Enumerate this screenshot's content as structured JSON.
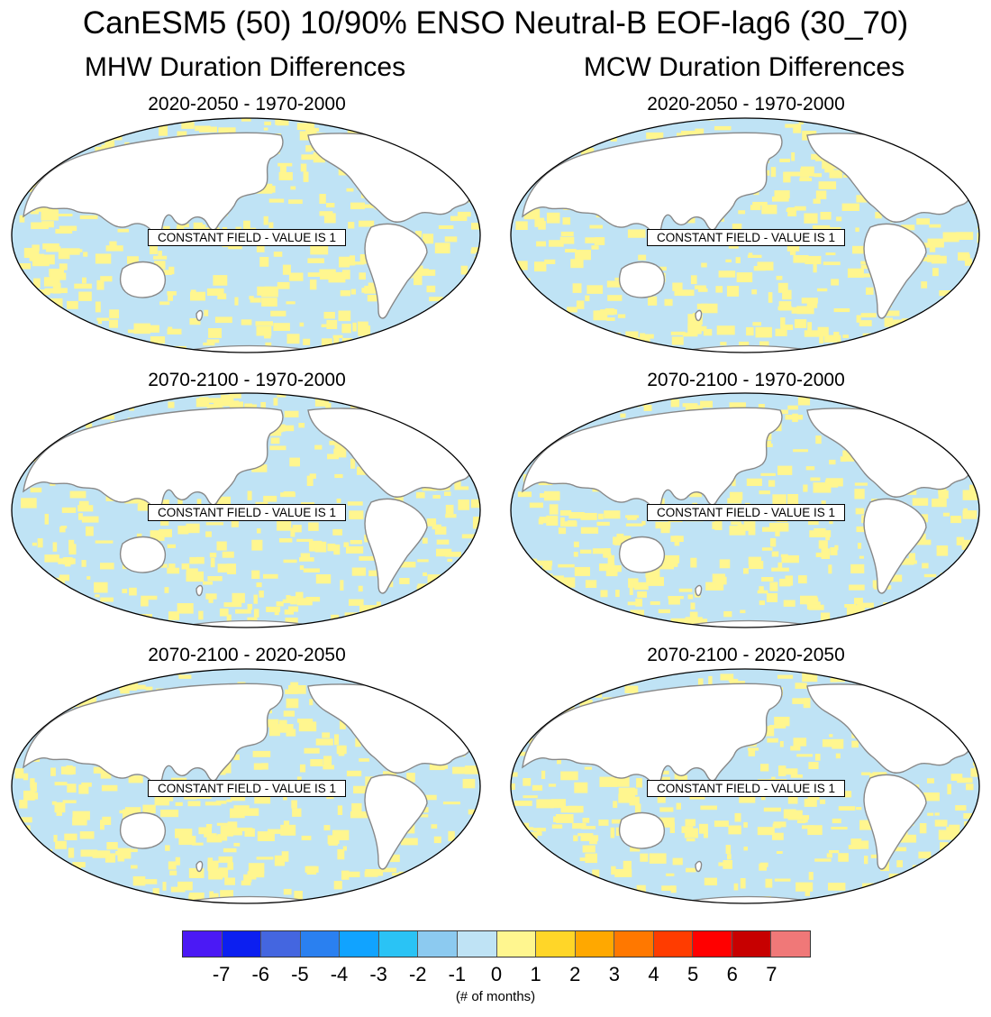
{
  "title": "CanESM5 (50) 10/90% ENSO Neutral-B EOF-lag6 (30_70)",
  "columns": [
    {
      "title": "MHW Duration Differences"
    },
    {
      "title": "MCW Duration Differences"
    }
  ],
  "panels": [
    {
      "subtitle": "2020-2050 - 1970-2000",
      "note": "CONSTANT FIELD - VALUE IS 1"
    },
    {
      "subtitle": "2020-2050 - 1970-2000",
      "note": "CONSTANT FIELD - VALUE IS 1"
    },
    {
      "subtitle": "2070-2100 - 1970-2000",
      "note": "CONSTANT FIELD - VALUE IS 1"
    },
    {
      "subtitle": "2070-2100 - 1970-2000",
      "note": "CONSTANT FIELD - VALUE IS 1"
    },
    {
      "subtitle": "2070-2100 - 2020-2050",
      "note": "CONSTANT FIELD - VALUE IS 1"
    },
    {
      "subtitle": "2070-2100 - 2020-2050",
      "note": "CONSTANT FIELD - VALUE IS 1"
    }
  ],
  "colorbar": {
    "colors": [
      "#4b19f5",
      "#0c1ff0",
      "#4466e0",
      "#2a80f0",
      "#11a3ff",
      "#2ac3f5",
      "#8ccaf0",
      "#bfe3f5",
      "#fff68f",
      "#ffd628",
      "#ffa800",
      "#ff7800",
      "#ff3c00",
      "#ff0000",
      "#c70000",
      "#f07878"
    ],
    "tick_labels": [
      "-7",
      "-6",
      "-5",
      "-4",
      "-3",
      "-2",
      "-1",
      "0",
      "1",
      "2",
      "3",
      "4",
      "5",
      "6",
      "7"
    ],
    "units": "(# of months)"
  },
  "map_style": {
    "ocean_blue": "#bfe3f5",
    "ocean_yellow": "#fff68f",
    "land": "#ffffff",
    "coast": "#888888"
  }
}
